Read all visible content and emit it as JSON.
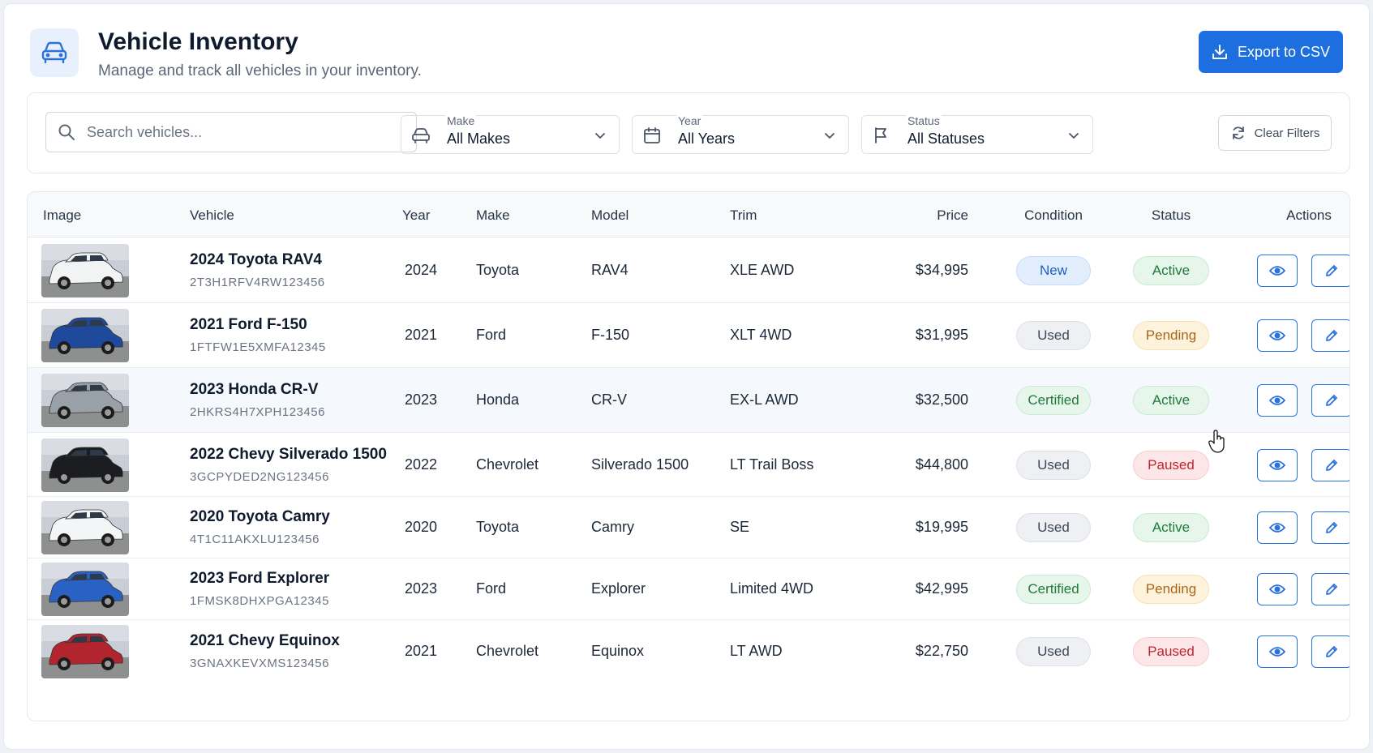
{
  "header": {
    "title": "Vehicle Inventory",
    "subtitle": "Manage and track all vehicles in your inventory.",
    "export_label": "Export to CSV"
  },
  "filters": {
    "search_placeholder": "Search vehicles...",
    "make": {
      "label": "Make",
      "value": "All Makes"
    },
    "year": {
      "label": "Year",
      "value": "All Years"
    },
    "status": {
      "label": "Status",
      "value": "All Statuses"
    },
    "clear_label": "Clear Filters"
  },
  "table": {
    "columns": [
      "Image",
      "Vehicle",
      "Year",
      "Make",
      "Model",
      "Trim",
      "Price",
      "Condition",
      "Status",
      "Actions"
    ],
    "rows": [
      {
        "name": "2024 Toyota RAV4",
        "vin": "2T3H1RFV4RW123456",
        "year": "2024",
        "make": "Toyota",
        "model": "RAV4",
        "trim": "XLE AWD",
        "price": "$34,995",
        "condition": "New",
        "status": "Active",
        "car_color": "#f2f3f5"
      },
      {
        "name": "2021 Ford F-150",
        "vin": "1FTFW1E5XMFA12345",
        "year": "2021",
        "make": "Ford",
        "model": "F-150",
        "trim": "XLT 4WD",
        "price": "$31,995",
        "condition": "Used",
        "status": "Pending",
        "car_color": "#1f4a9c"
      },
      {
        "name": "2023 Honda CR-V",
        "vin": "2HKRS4H7XPH123456",
        "year": "2023",
        "make": "Honda",
        "model": "CR-V",
        "trim": "EX-L AWD",
        "price": "$32,500",
        "condition": "Certified",
        "status": "Active",
        "car_color": "#9aa0a8"
      },
      {
        "name": "2022 Chevy Silverado 1500",
        "vin": "3GCPYDED2NG123456",
        "year": "2022",
        "make": "Chevrolet",
        "model": "Silverado 1500",
        "trim": "LT Trail Boss",
        "price": "$44,800",
        "condition": "Used",
        "status": "Paused",
        "car_color": "#1b1d21"
      },
      {
        "name": "2020 Toyota Camry",
        "vin": "4T1C11AKXLU123456",
        "year": "2020",
        "make": "Toyota",
        "model": "Camry",
        "trim": "SE",
        "price": "$19,995",
        "condition": "Used",
        "status": "Active",
        "car_color": "#f4f5f7"
      },
      {
        "name": "2023 Ford Explorer",
        "vin": "1FMSK8DHXPGA12345",
        "year": "2023",
        "make": "Ford",
        "model": "Explorer",
        "trim": "Limited 4WD",
        "price": "$42,995",
        "condition": "Certified",
        "status": "Pending",
        "car_color": "#2a62c4"
      },
      {
        "name": "2021 Chevy Equinox",
        "vin": "3GNAXKEVXMS123456",
        "year": "2021",
        "make": "Chevrolet",
        "model": "Equinox",
        "trim": "LT AWD",
        "price": "$22,750",
        "condition": "Used",
        "status": "Paused",
        "car_color": "#b3252e"
      }
    ]
  },
  "badge_colors": {
    "New": {
      "bg": "#e3eefc",
      "fg": "#1d5fc6",
      "border": "#c6dbf7"
    },
    "Used": {
      "bg": "#eef0f3",
      "fg": "#3e4856",
      "border": "#dde1e6"
    },
    "Certified": {
      "bg": "#e6f6ea",
      "fg": "#1f7a3a",
      "border": "#c8ead1"
    },
    "Active": {
      "bg": "#e6f6ea",
      "fg": "#1f7a3a",
      "border": "#c8ead1"
    },
    "Pending": {
      "bg": "#fdf3dc",
      "fg": "#a9661a",
      "border": "#f6e2b3"
    },
    "Paused": {
      "bg": "#fde6e7",
      "fg": "#c0252f",
      "border": "#f7cdd0"
    }
  },
  "accent_color": "#1d6fe0"
}
